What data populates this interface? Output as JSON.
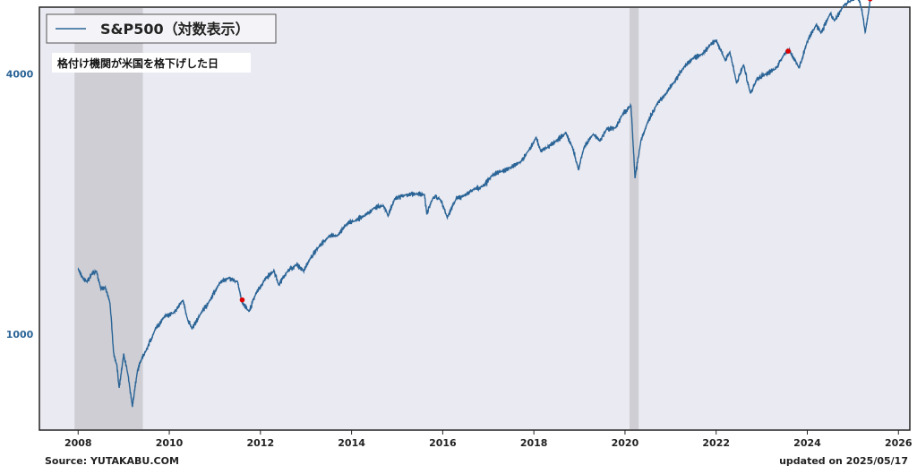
{
  "chart_data": {
    "type": "line",
    "title": "",
    "legend": {
      "label": "S&P500（対数表示）",
      "placement": "top-left"
    },
    "annotation_label": "格付け機関が米国を格下げした日",
    "xlabel": "",
    "ylabel": "",
    "y_scale": "log",
    "xlim": [
      2008,
      2026
    ],
    "ylim": [
      600,
      5700
    ],
    "x_ticks": [
      "2008",
      "2010",
      "2012",
      "2014",
      "2016",
      "2018",
      "2020",
      "2022",
      "2024",
      "2026"
    ],
    "y_ticks": [
      {
        "value": 1000,
        "label": "1000"
      },
      {
        "value": 4000,
        "label": "4000"
      }
    ],
    "grid": false,
    "shaded_periods": [
      {
        "start": 2007.92,
        "end": 2009.42
      },
      {
        "start": 2020.1,
        "end": 2020.3
      }
    ],
    "series": [
      {
        "name": "S&P500",
        "color": "#2a6496",
        "points": [
          [
            2008.0,
            1410
          ],
          [
            2008.1,
            1350
          ],
          [
            2008.2,
            1320
          ],
          [
            2008.3,
            1380
          ],
          [
            2008.4,
            1400
          ],
          [
            2008.5,
            1270
          ],
          [
            2008.6,
            1280
          ],
          [
            2008.7,
            1180
          ],
          [
            2008.78,
            900
          ],
          [
            2008.85,
            850
          ],
          [
            2008.9,
            750
          ],
          [
            2009.0,
            900
          ],
          [
            2009.1,
            800
          ],
          [
            2009.19,
            680
          ],
          [
            2009.3,
            820
          ],
          [
            2009.4,
            880
          ],
          [
            2009.5,
            920
          ],
          [
            2009.7,
            1030
          ],
          [
            2009.9,
            1100
          ],
          [
            2010.1,
            1120
          ],
          [
            2010.3,
            1200
          ],
          [
            2010.4,
            1080
          ],
          [
            2010.5,
            1030
          ],
          [
            2010.7,
            1120
          ],
          [
            2010.9,
            1200
          ],
          [
            2011.1,
            1310
          ],
          [
            2011.3,
            1350
          ],
          [
            2011.5,
            1320
          ],
          [
            2011.6,
            1180
          ],
          [
            2011.75,
            1130
          ],
          [
            2011.9,
            1240
          ],
          [
            2012.1,
            1340
          ],
          [
            2012.3,
            1400
          ],
          [
            2012.4,
            1300
          ],
          [
            2012.6,
            1400
          ],
          [
            2012.8,
            1450
          ],
          [
            2012.95,
            1400
          ],
          [
            2013.1,
            1500
          ],
          [
            2013.3,
            1600
          ],
          [
            2013.5,
            1680
          ],
          [
            2013.7,
            1690
          ],
          [
            2013.9,
            1800
          ],
          [
            2014.1,
            1830
          ],
          [
            2014.3,
            1880
          ],
          [
            2014.5,
            1960
          ],
          [
            2014.7,
            1980
          ],
          [
            2014.8,
            1880
          ],
          [
            2014.95,
            2060
          ],
          [
            2015.2,
            2100
          ],
          [
            2015.45,
            2110
          ],
          [
            2015.6,
            2100
          ],
          [
            2015.65,
            1900
          ],
          [
            2015.8,
            2080
          ],
          [
            2015.95,
            2050
          ],
          [
            2016.1,
            1860
          ],
          [
            2016.3,
            2060
          ],
          [
            2016.5,
            2100
          ],
          [
            2016.7,
            2170
          ],
          [
            2016.9,
            2200
          ],
          [
            2017.1,
            2340
          ],
          [
            2017.3,
            2380
          ],
          [
            2017.5,
            2430
          ],
          [
            2017.7,
            2500
          ],
          [
            2017.9,
            2670
          ],
          [
            2018.05,
            2850
          ],
          [
            2018.15,
            2650
          ],
          [
            2018.3,
            2700
          ],
          [
            2018.5,
            2800
          ],
          [
            2018.7,
            2920
          ],
          [
            2018.85,
            2700
          ],
          [
            2018.98,
            2400
          ],
          [
            2019.1,
            2700
          ],
          [
            2019.3,
            2900
          ],
          [
            2019.45,
            2800
          ],
          [
            2019.6,
            2980
          ],
          [
            2019.8,
            3000
          ],
          [
            2019.95,
            3230
          ],
          [
            2020.13,
            3380
          ],
          [
            2020.22,
            2300
          ],
          [
            2020.35,
            2800
          ],
          [
            2020.5,
            3100
          ],
          [
            2020.7,
            3400
          ],
          [
            2020.9,
            3600
          ],
          [
            2021.1,
            3850
          ],
          [
            2021.3,
            4150
          ],
          [
            2021.5,
            4350
          ],
          [
            2021.7,
            4450
          ],
          [
            2021.9,
            4700
          ],
          [
            2022.0,
            4770
          ],
          [
            2022.2,
            4300
          ],
          [
            2022.3,
            4500
          ],
          [
            2022.45,
            3800
          ],
          [
            2022.6,
            4200
          ],
          [
            2022.75,
            3600
          ],
          [
            2022.9,
            3900
          ],
          [
            2023.1,
            4000
          ],
          [
            2023.3,
            4100
          ],
          [
            2023.5,
            4450
          ],
          [
            2023.6,
            4550
          ],
          [
            2023.82,
            4120
          ],
          [
            2024.0,
            4750
          ],
          [
            2024.2,
            5200
          ],
          [
            2024.3,
            4970
          ],
          [
            2024.5,
            5500
          ],
          [
            2024.6,
            5300
          ],
          [
            2024.8,
            5750
          ],
          [
            2024.95,
            5900
          ],
          [
            2025.1,
            6100
          ],
          [
            2025.2,
            5600
          ],
          [
            2025.27,
            4980
          ],
          [
            2025.35,
            5600
          ],
          [
            2025.38,
            5950
          ]
        ]
      }
    ],
    "marked_points": [
      {
        "x": 2011.6,
        "y": 1200
      },
      {
        "x": 2023.58,
        "y": 4510
      },
      {
        "x": 2025.38,
        "y": 5958
      }
    ],
    "marker_color": "#e00000"
  },
  "footer": {
    "source": "Source: YUTAKABU.COM",
    "updated": "updated on 2025/05/17"
  }
}
